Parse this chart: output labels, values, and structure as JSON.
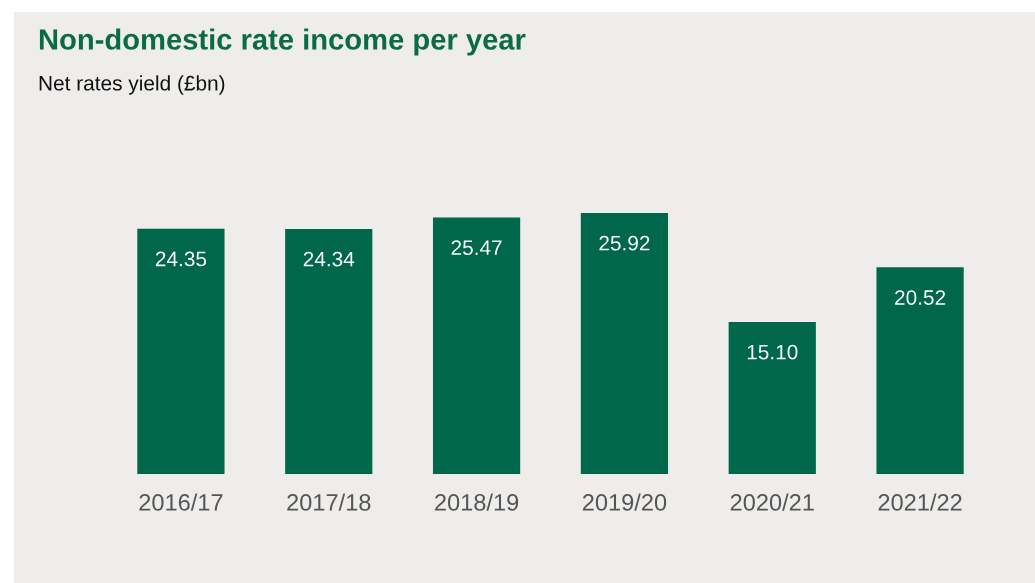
{
  "chart_data": {
    "type": "bar",
    "title": "Non-domestic rate income per year",
    "subtitle": "Net rates yield (£bn)",
    "categories": [
      "2016/17",
      "2017/18",
      "2018/19",
      "2019/20",
      "2020/21",
      "2021/22"
    ],
    "values": [
      24.35,
      24.34,
      25.47,
      25.92,
      15.1,
      20.52
    ],
    "value_labels": [
      "24.35",
      "24.34",
      "25.47",
      "25.92",
      "15.10",
      "20.52"
    ],
    "color": "#00674a",
    "grid": false,
    "legend": false
  }
}
